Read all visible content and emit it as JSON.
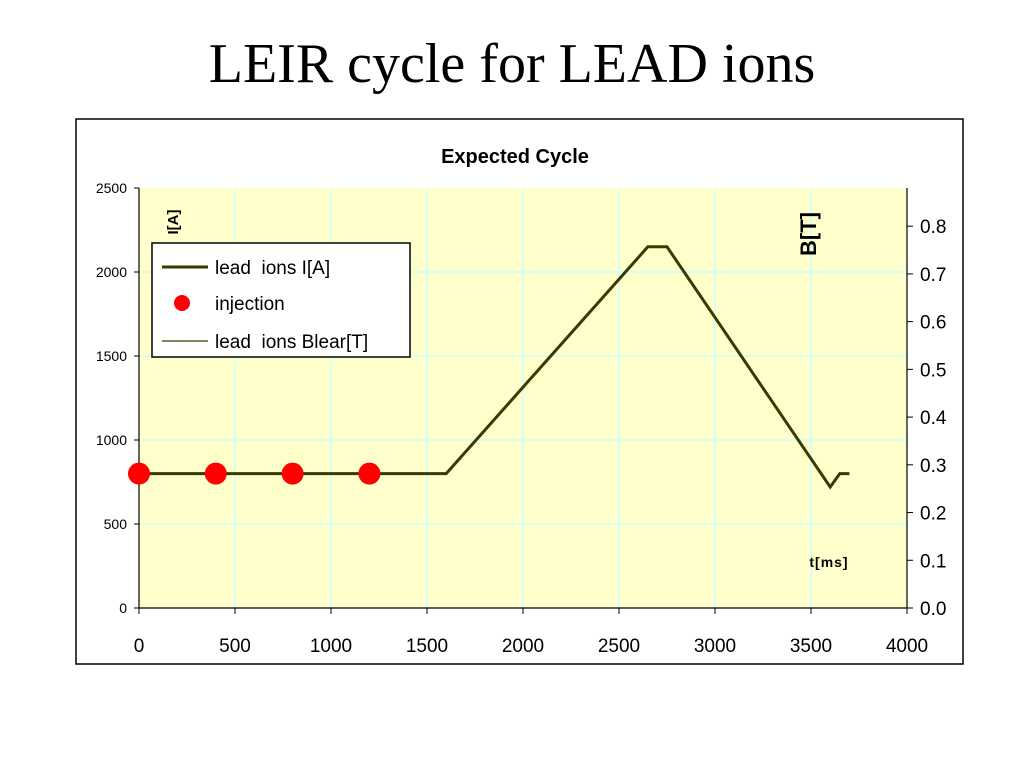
{
  "slide": {
    "title": "LEIR cycle for LEAD ions"
  },
  "colors": {
    "plot_background": "#FFFFCC",
    "grid": "#CCFFFF",
    "current_line": "#3A3A00",
    "injection_marker": "#FF0000",
    "frame": "#000000"
  },
  "chart_data": {
    "type": "line",
    "title": "Expected Cycle",
    "xlabel": "t[ms]",
    "ylabel": "I[A]",
    "y2label": "B[T]",
    "xlim": [
      0,
      4000
    ],
    "ylim": [
      0,
      2500
    ],
    "y2lim": [
      0,
      0.88
    ],
    "xticks": [
      "0",
      "500",
      "1000",
      "1500",
      "2000",
      "2500",
      "3000",
      "3500",
      "4000"
    ],
    "yticks": [
      "0",
      "500",
      "1000",
      "1500",
      "2000",
      "2500"
    ],
    "y2ticks": [
      "0.0",
      "0.1",
      "0.2",
      "0.3",
      "0.4",
      "0.5",
      "0.6",
      "0.7",
      "0.8"
    ],
    "grid": true,
    "legend_position": "top-left",
    "series": [
      {
        "name": "lead  ions I[A]",
        "kind": "line",
        "axis": "left",
        "x": [
          0,
          1600,
          2650,
          2750,
          3600,
          3650,
          3700
        ],
        "y": [
          800,
          800,
          2150,
          2150,
          720,
          800,
          800
        ]
      },
      {
        "name": "injection",
        "kind": "marker",
        "axis": "left",
        "x": [
          0,
          400,
          800,
          1200
        ],
        "y": [
          800,
          800,
          800,
          800
        ]
      },
      {
        "name": "lead  ions Blear[T]",
        "kind": "line",
        "axis": "right",
        "x": [],
        "y": []
      }
    ]
  }
}
